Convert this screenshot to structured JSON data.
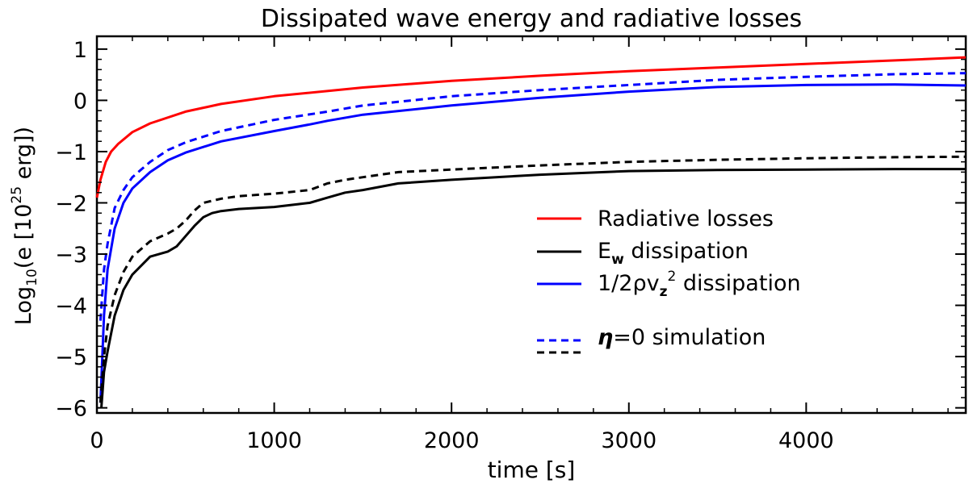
{
  "chart_data": {
    "type": "line",
    "title": "Dissipated wave energy and radiative losses",
    "xlabel": "time [s]",
    "ylabel": {
      "prefix": "Log",
      "sub": "10",
      "mid": "(e [10",
      "sup": "25",
      "suffix": " erg])"
    },
    "xlim": [
      0,
      4900
    ],
    "ylim": [
      -6.1,
      1.25
    ],
    "xticks": [
      0,
      1000,
      2000,
      3000,
      4000
    ],
    "xtick_labels": [
      "0",
      "1000",
      "2000",
      "3000",
      "4000"
    ],
    "yticks": [
      1,
      0,
      -1,
      -2,
      -3,
      -4,
      -5,
      -6
    ],
    "ytick_labels": [
      "1",
      "0",
      "−1",
      "−2",
      "−3",
      "−4",
      "−5",
      "−6"
    ],
    "grid": false,
    "legend_position": "lower-right",
    "legend": [
      {
        "key": "radiative",
        "text": "Radiative losses",
        "color": "#ff0000",
        "dash": false
      },
      {
        "key": "ew",
        "main": "E",
        "sub": "w",
        "rest": " dissipation",
        "color": "#000000",
        "dash": false
      },
      {
        "key": "kin",
        "main": "1/2ρv",
        "sub": "z",
        "sup": "2",
        "rest": " dissipation",
        "color": "#0000ff",
        "dash": false
      },
      {
        "key": "eta",
        "eta": "η",
        "rest": "=0 simulation",
        "colors": [
          "#0000ff",
          "#000000"
        ],
        "dash": true
      }
    ],
    "series": [
      {
        "name": "Radiative losses",
        "color": "#ff0000",
        "dash": false,
        "x": [
          0,
          20,
          50,
          80,
          120,
          200,
          300,
          500,
          700,
          1000,
          1500,
          2000,
          2500,
          3000,
          3500,
          4000,
          4500,
          4900
        ],
        "y": [
          -1.9,
          -1.55,
          -1.2,
          -1.0,
          -0.85,
          -0.62,
          -0.45,
          -0.22,
          -0.07,
          0.08,
          0.25,
          0.38,
          0.48,
          0.57,
          0.64,
          0.71,
          0.78,
          0.84
        ]
      },
      {
        "name": "1/2ρvz² dissipation (η=0)",
        "color": "#0000ff",
        "dash": true,
        "x": [
          20,
          40,
          60,
          100,
          150,
          200,
          300,
          400,
          500,
          700,
          1000,
          1300,
          1500,
          2000,
          2500,
          3000,
          3500,
          4000,
          4500,
          4900
        ],
        "y": [
          -4.3,
          -3.3,
          -2.8,
          -2.1,
          -1.75,
          -1.5,
          -1.2,
          -0.97,
          -0.82,
          -0.6,
          -0.38,
          -0.22,
          -0.1,
          0.08,
          0.2,
          0.3,
          0.4,
          0.46,
          0.51,
          0.53
        ]
      },
      {
        "name": "1/2ρvz² dissipation",
        "color": "#0000ff",
        "dash": false,
        "x": [
          20,
          40,
          60,
          100,
          150,
          200,
          300,
          400,
          500,
          700,
          1000,
          1200,
          1300,
          1500,
          2000,
          2500,
          3000,
          3500,
          4000,
          4500,
          4900
        ],
        "y": [
          -5.9,
          -4.2,
          -3.3,
          -2.5,
          -2.0,
          -1.72,
          -1.4,
          -1.17,
          -1.02,
          -0.8,
          -0.6,
          -0.47,
          -0.4,
          -0.28,
          -0.1,
          0.05,
          0.17,
          0.26,
          0.3,
          0.31,
          0.29
        ]
      },
      {
        "name": "E_w dissipation (η=0)",
        "color": "#000000",
        "dash": true,
        "x": [
          20,
          40,
          60,
          100,
          150,
          200,
          300,
          400,
          450,
          500,
          550,
          600,
          700,
          800,
          1000,
          1200,
          1300,
          1400,
          1500,
          1700,
          2000,
          2500,
          3000,
          3500,
          4000,
          4500,
          4900
        ],
        "y": [
          -5.9,
          -5.0,
          -4.4,
          -3.8,
          -3.35,
          -3.05,
          -2.75,
          -2.6,
          -2.5,
          -2.35,
          -2.15,
          -2.0,
          -1.92,
          -1.87,
          -1.82,
          -1.75,
          -1.62,
          -1.55,
          -1.5,
          -1.4,
          -1.35,
          -1.27,
          -1.2,
          -1.16,
          -1.13,
          -1.11,
          -1.1
        ]
      },
      {
        "name": "E_w dissipation",
        "color": "#000000",
        "dash": false,
        "x": [
          25,
          40,
          60,
          100,
          150,
          200,
          300,
          400,
          450,
          500,
          550,
          600,
          650,
          700,
          800,
          1000,
          1200,
          1300,
          1400,
          1500,
          1700,
          2000,
          2500,
          3000,
          3500,
          4000,
          4500,
          4900
        ],
        "y": [
          -6.0,
          -5.3,
          -4.9,
          -4.2,
          -3.7,
          -3.4,
          -3.05,
          -2.95,
          -2.85,
          -2.65,
          -2.45,
          -2.28,
          -2.2,
          -2.16,
          -2.12,
          -2.08,
          -2.0,
          -1.9,
          -1.8,
          -1.75,
          -1.62,
          -1.55,
          -1.45,
          -1.38,
          -1.36,
          -1.35,
          -1.34,
          -1.34
        ]
      }
    ]
  }
}
